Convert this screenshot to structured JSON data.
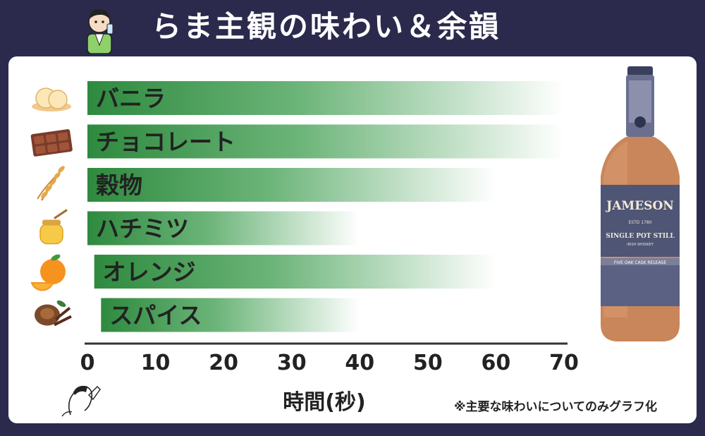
{
  "header": {
    "title": "らま主観の味わい＆余韻"
  },
  "chart_data": {
    "type": "bar",
    "orientation": "horizontal",
    "categories": [
      "バニラ",
      "チョコレート",
      "穀物",
      "ハチミツ",
      "オレンジ",
      "スパイス"
    ],
    "icons": [
      "vanilla-icecream-icon",
      "chocolate-icon",
      "wheat-icon",
      "honey-jar-icon",
      "orange-icon",
      "nutmeg-clove-icon"
    ],
    "series": [
      {
        "starts": [
          0,
          0,
          0,
          0,
          1,
          2
        ],
        "values": [
          70,
          70,
          60,
          40,
          60,
          40
        ]
      }
    ],
    "xlim": [
      0,
      70
    ],
    "xticks": [
      "0",
      "10",
      "20",
      "30",
      "40",
      "50",
      "60",
      "70"
    ],
    "xlabel": "時間(秒)",
    "note": "※主要な味わいについてのみグラフ化",
    "colors": {
      "bar_start": "#2e8a3e",
      "bar_end": "#ffffff",
      "background": "#2b2a4d"
    }
  },
  "bottle": {
    "brand": "JAMESON",
    "line": "SINGLE POT STILL",
    "estd": "ESTD 1780",
    "sub": "IRISH WHISKEY",
    "band": "FIVE OAK CASK RELEASE"
  }
}
